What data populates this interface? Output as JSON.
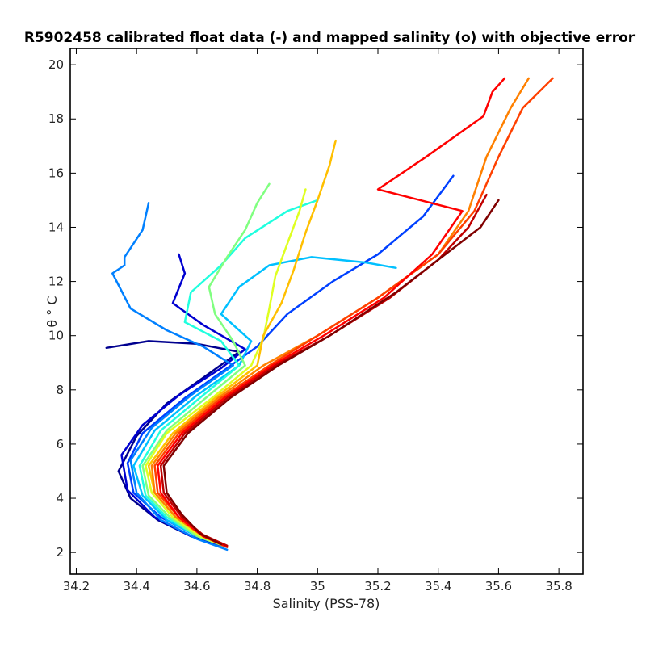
{
  "chart_data": {
    "type": "line",
    "title": "R5902458 calibrated float data (-) and mapped salinity (o) with objective error",
    "xlabel": "Salinity (PSS-78)",
    "ylabel": "θ ° C",
    "xlim": [
      34.18,
      35.88
    ],
    "ylim": [
      1.2,
      20.6
    ],
    "xticks": [
      "34.2",
      "34.4",
      "34.6",
      "34.8",
      "35",
      "35.2",
      "35.4",
      "35.6",
      "35.8"
    ],
    "yticks": [
      "2",
      "4",
      "6",
      "8",
      "10",
      "12",
      "14",
      "16",
      "18",
      "20"
    ],
    "grid": false,
    "legend": "none",
    "colormap": "jet",
    "series": [
      {
        "color": "#00008f",
        "points": [
          [
            34.7,
            2.2
          ],
          [
            34.58,
            2.6
          ],
          [
            34.47,
            3.2
          ],
          [
            34.38,
            4.0
          ],
          [
            34.34,
            5.0
          ],
          [
            34.4,
            6.3
          ],
          [
            34.5,
            7.5
          ],
          [
            34.64,
            8.6
          ],
          [
            34.74,
            9.4
          ],
          [
            34.6,
            9.7
          ],
          [
            34.44,
            9.8
          ],
          [
            34.3,
            9.55
          ]
        ]
      },
      {
        "color": "#0000d0",
        "points": [
          [
            34.7,
            2.2
          ],
          [
            34.58,
            2.6
          ],
          [
            34.46,
            3.3
          ],
          [
            34.37,
            4.3
          ],
          [
            34.35,
            5.6
          ],
          [
            34.42,
            6.7
          ],
          [
            34.54,
            7.8
          ],
          [
            34.68,
            8.8
          ],
          [
            34.76,
            9.5
          ],
          [
            34.62,
            10.4
          ],
          [
            34.52,
            11.2
          ],
          [
            34.56,
            12.3
          ],
          [
            34.54,
            13.0
          ]
        ]
      },
      {
        "color": "#0040ff",
        "points": [
          [
            34.7,
            2.2
          ],
          [
            34.6,
            2.6
          ],
          [
            34.48,
            3.3
          ],
          [
            34.39,
            4.2
          ],
          [
            34.37,
            5.3
          ],
          [
            34.42,
            6.4
          ],
          [
            34.56,
            7.7
          ],
          [
            34.7,
            8.8
          ],
          [
            34.8,
            9.6
          ],
          [
            34.9,
            10.8
          ],
          [
            35.05,
            12.0
          ],
          [
            35.2,
            13.0
          ],
          [
            35.35,
            14.4
          ],
          [
            35.45,
            15.9
          ]
        ]
      },
      {
        "color": "#0080ff",
        "points": [
          [
            34.7,
            2.1
          ],
          [
            34.6,
            2.5
          ],
          [
            34.48,
            3.2
          ],
          [
            34.4,
            4.2
          ],
          [
            34.38,
            5.4
          ],
          [
            34.45,
            6.6
          ],
          [
            34.58,
            7.8
          ],
          [
            34.72,
            8.9
          ],
          [
            34.62,
            9.6
          ],
          [
            34.5,
            10.2
          ],
          [
            34.38,
            11.0
          ],
          [
            34.32,
            12.3
          ],
          [
            34.36,
            12.6
          ],
          [
            34.36,
            12.9
          ],
          [
            34.42,
            13.9
          ],
          [
            34.44,
            14.9
          ]
        ]
      },
      {
        "color": "#00c0ff",
        "points": [
          [
            34.7,
            2.2
          ],
          [
            34.6,
            2.6
          ],
          [
            34.5,
            3.2
          ],
          [
            34.42,
            4.1
          ],
          [
            34.39,
            5.2
          ],
          [
            34.46,
            6.5
          ],
          [
            34.6,
            7.8
          ],
          [
            34.74,
            8.9
          ],
          [
            34.78,
            9.8
          ],
          [
            34.68,
            10.8
          ],
          [
            34.74,
            11.8
          ],
          [
            34.84,
            12.6
          ],
          [
            34.98,
            12.9
          ],
          [
            35.16,
            12.7
          ],
          [
            35.26,
            12.5
          ]
        ]
      },
      {
        "color": "#20ffdf",
        "points": [
          [
            34.7,
            2.2
          ],
          [
            34.6,
            2.6
          ],
          [
            34.5,
            3.3
          ],
          [
            34.43,
            4.1
          ],
          [
            34.41,
            5.2
          ],
          [
            34.48,
            6.5
          ],
          [
            34.62,
            7.8
          ],
          [
            34.74,
            8.9
          ],
          [
            34.68,
            9.8
          ],
          [
            34.56,
            10.5
          ],
          [
            34.58,
            11.6
          ],
          [
            34.68,
            12.6
          ],
          [
            34.76,
            13.6
          ],
          [
            34.9,
            14.6
          ],
          [
            35.0,
            15.0
          ]
        ]
      },
      {
        "color": "#80ff80",
        "points": [
          [
            34.7,
            2.2
          ],
          [
            34.6,
            2.6
          ],
          [
            34.51,
            3.3
          ],
          [
            34.44,
            4.1
          ],
          [
            34.42,
            5.2
          ],
          [
            34.5,
            6.5
          ],
          [
            34.64,
            7.8
          ],
          [
            34.76,
            8.9
          ],
          [
            34.72,
            9.8
          ],
          [
            34.66,
            10.8
          ],
          [
            34.64,
            11.8
          ],
          [
            34.7,
            12.9
          ],
          [
            34.76,
            13.9
          ],
          [
            34.8,
            14.9
          ],
          [
            34.84,
            15.6
          ]
        ]
      },
      {
        "color": "#dfff20",
        "points": [
          [
            34.7,
            2.2
          ],
          [
            34.61,
            2.6
          ],
          [
            34.52,
            3.3
          ],
          [
            34.45,
            4.2
          ],
          [
            34.43,
            5.2
          ],
          [
            34.5,
            6.4
          ],
          [
            34.65,
            7.7
          ],
          [
            34.78,
            8.9
          ],
          [
            34.82,
            9.9
          ],
          [
            34.84,
            11.0
          ],
          [
            34.86,
            12.2
          ],
          [
            34.9,
            13.4
          ],
          [
            34.94,
            14.6
          ],
          [
            34.96,
            15.4
          ]
        ]
      },
      {
        "color": "#ffbf00",
        "points": [
          [
            34.7,
            2.2
          ],
          [
            34.62,
            2.6
          ],
          [
            34.53,
            3.3
          ],
          [
            34.46,
            4.2
          ],
          [
            34.44,
            5.2
          ],
          [
            34.52,
            6.4
          ],
          [
            34.66,
            7.7
          ],
          [
            34.8,
            8.9
          ],
          [
            34.82,
            10.0
          ],
          [
            34.88,
            11.2
          ],
          [
            34.92,
            12.4
          ],
          [
            34.96,
            13.8
          ],
          [
            35.0,
            15.0
          ],
          [
            35.04,
            16.3
          ],
          [
            35.06,
            17.2
          ]
        ]
      },
      {
        "color": "#ff8000",
        "points": [
          [
            34.7,
            2.2
          ],
          [
            34.62,
            2.6
          ],
          [
            34.53,
            3.3
          ],
          [
            34.46,
            4.2
          ],
          [
            34.45,
            5.2
          ],
          [
            34.53,
            6.4
          ],
          [
            34.67,
            7.7
          ],
          [
            34.82,
            8.9
          ],
          [
            35.0,
            10.0
          ],
          [
            35.2,
            11.4
          ],
          [
            35.4,
            13.0
          ],
          [
            35.5,
            14.6
          ],
          [
            35.56,
            16.6
          ],
          [
            35.64,
            18.4
          ],
          [
            35.7,
            19.5
          ]
        ]
      },
      {
        "color": "#ff4000",
        "points": [
          [
            34.7,
            2.2
          ],
          [
            34.62,
            2.6
          ],
          [
            34.54,
            3.3
          ],
          [
            34.47,
            4.2
          ],
          [
            34.46,
            5.2
          ],
          [
            34.54,
            6.4
          ],
          [
            34.68,
            7.7
          ],
          [
            34.84,
            8.9
          ],
          [
            35.0,
            10.0
          ],
          [
            35.2,
            11.4
          ],
          [
            35.4,
            13.0
          ],
          [
            35.52,
            14.6
          ],
          [
            35.6,
            16.6
          ],
          [
            35.68,
            18.4
          ],
          [
            35.78,
            19.5
          ]
        ]
      },
      {
        "color": "#ff0000",
        "points": [
          [
            34.7,
            2.2
          ],
          [
            34.62,
            2.6
          ],
          [
            34.54,
            3.3
          ],
          [
            34.48,
            4.2
          ],
          [
            34.47,
            5.2
          ],
          [
            34.55,
            6.4
          ],
          [
            34.69,
            7.7
          ],
          [
            34.85,
            8.9
          ],
          [
            35.02,
            10.0
          ],
          [
            35.22,
            11.4
          ],
          [
            35.38,
            13.0
          ],
          [
            35.48,
            14.6
          ],
          [
            35.2,
            15.4
          ],
          [
            35.36,
            16.6
          ],
          [
            35.55,
            18.1
          ],
          [
            35.58,
            19.0
          ],
          [
            35.62,
            19.5
          ]
        ]
      },
      {
        "color": "#c00000",
        "points": [
          [
            34.7,
            2.25
          ],
          [
            34.62,
            2.65
          ],
          [
            34.55,
            3.3
          ],
          [
            34.49,
            4.2
          ],
          [
            34.48,
            5.2
          ],
          [
            34.56,
            6.4
          ],
          [
            34.7,
            7.7
          ],
          [
            34.86,
            8.9
          ],
          [
            35.04,
            10.0
          ],
          [
            35.24,
            11.4
          ],
          [
            35.4,
            12.8
          ],
          [
            35.5,
            14.0
          ],
          [
            35.56,
            15.2
          ]
        ]
      },
      {
        "color": "#800000",
        "points": [
          [
            34.68,
            2.3
          ],
          [
            34.61,
            2.7
          ],
          [
            34.55,
            3.4
          ],
          [
            34.5,
            4.2
          ],
          [
            34.49,
            5.2
          ],
          [
            34.57,
            6.4
          ],
          [
            34.71,
            7.7
          ],
          [
            34.87,
            8.9
          ],
          [
            35.04,
            10.0
          ],
          [
            35.26,
            11.6
          ],
          [
            35.4,
            12.8
          ],
          [
            35.54,
            14.0
          ],
          [
            35.6,
            15.0
          ]
        ]
      }
    ]
  }
}
